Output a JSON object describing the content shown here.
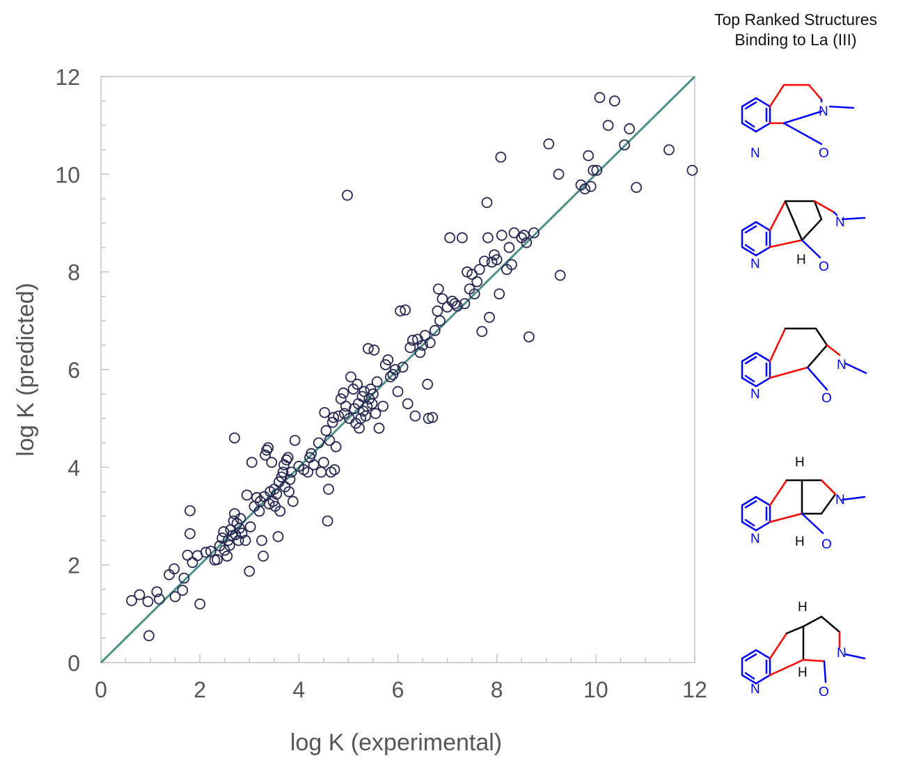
{
  "chart_data": {
    "type": "scatter",
    "xlabel": "log K (experimental)",
    "ylabel": "log K (predicted)",
    "xlim": [
      0,
      12
    ],
    "ylim": [
      0,
      12
    ],
    "x_ticks": [
      "0",
      "2",
      "4",
      "6",
      "8",
      "10",
      "12"
    ],
    "y_ticks": [
      "0",
      "2",
      "4",
      "6",
      "8",
      "10",
      "12"
    ],
    "grid": false,
    "fit_line": {
      "x": [
        0,
        12
      ],
      "y": [
        0,
        12
      ]
    },
    "points": [
      [
        0.62,
        1.27
      ],
      [
        0.78,
        1.39
      ],
      [
        0.95,
        1.25
      ],
      [
        0.97,
        0.55
      ],
      [
        1.13,
        1.45
      ],
      [
        1.18,
        1.3
      ],
      [
        1.38,
        1.8
      ],
      [
        1.48,
        1.92
      ],
      [
        1.5,
        1.35
      ],
      [
        1.65,
        1.48
      ],
      [
        1.68,
        1.73
      ],
      [
        1.75,
        2.2
      ],
      [
        1.8,
        2.64
      ],
      [
        1.8,
        3.11
      ],
      [
        1.85,
        2.05
      ],
      [
        1.95,
        2.19
      ],
      [
        2.0,
        1.2
      ],
      [
        2.12,
        2.26
      ],
      [
        2.22,
        2.28
      ],
      [
        2.3,
        2.1
      ],
      [
        2.35,
        2.11
      ],
      [
        2.4,
        2.39
      ],
      [
        2.45,
        2.55
      ],
      [
        2.48,
        2.68
      ],
      [
        2.5,
        2.3
      ],
      [
        2.55,
        2.18
      ],
      [
        2.57,
        2.5
      ],
      [
        2.6,
        2.4
      ],
      [
        2.62,
        2.72
      ],
      [
        2.65,
        2.6
      ],
      [
        2.68,
        2.9
      ],
      [
        2.7,
        3.05
      ],
      [
        2.72,
        2.62
      ],
      [
        2.75,
        2.85
      ],
      [
        2.78,
        2.5
      ],
      [
        2.8,
        2.75
      ],
      [
        2.82,
        2.95
      ],
      [
        2.85,
        2.65
      ],
      [
        2.7,
        4.6
      ],
      [
        2.92,
        2.5
      ],
      [
        2.95,
        3.43
      ],
      [
        3.0,
        1.87
      ],
      [
        3.02,
        2.78
      ],
      [
        3.05,
        4.1
      ],
      [
        3.1,
        3.2
      ],
      [
        3.15,
        3.38
      ],
      [
        3.2,
        3.1
      ],
      [
        3.22,
        3.3
      ],
      [
        3.25,
        2.5
      ],
      [
        3.28,
        2.18
      ],
      [
        3.3,
        3.4
      ],
      [
        3.32,
        4.25
      ],
      [
        3.35,
        4.35
      ],
      [
        3.38,
        4.4
      ],
      [
        3.4,
        3.25
      ],
      [
        3.42,
        3.5
      ],
      [
        3.45,
        4.1
      ],
      [
        3.48,
        3.3
      ],
      [
        3.5,
        3.55
      ],
      [
        3.52,
        3.2
      ],
      [
        3.55,
        3.45
      ],
      [
        3.58,
        2.58
      ],
      [
        3.6,
        3.7
      ],
      [
        3.62,
        3.1
      ],
      [
        3.65,
        3.8
      ],
      [
        3.68,
        3.9
      ],
      [
        3.7,
        4.05
      ],
      [
        3.72,
        3.6
      ],
      [
        3.75,
        4.15
      ],
      [
        3.78,
        4.2
      ],
      [
        3.8,
        3.5
      ],
      [
        3.82,
        3.75
      ],
      [
        3.85,
        3.9
      ],
      [
        3.88,
        3.3
      ],
      [
        3.92,
        4.55
      ],
      [
        4.0,
        4.02
      ],
      [
        4.1,
        3.95
      ],
      [
        4.18,
        3.9
      ],
      [
        4.22,
        4.2
      ],
      [
        4.25,
        4.28
      ],
      [
        4.3,
        4.05
      ],
      [
        4.4,
        4.5
      ],
      [
        4.45,
        3.9
      ],
      [
        4.5,
        4.1
      ],
      [
        4.52,
        5.12
      ],
      [
        4.55,
        4.75
      ],
      [
        4.58,
        2.9
      ],
      [
        4.6,
        3.55
      ],
      [
        4.62,
        4.55
      ],
      [
        4.65,
        3.9
      ],
      [
        4.68,
        4.92
      ],
      [
        4.7,
        5.02
      ],
      [
        4.72,
        3.95
      ],
      [
        4.75,
        4.42
      ],
      [
        4.8,
        5.05
      ],
      [
        4.85,
        5.4
      ],
      [
        4.9,
        5.52
      ],
      [
        4.92,
        5.1
      ],
      [
        4.95,
        5.25
      ],
      [
        4.98,
        9.57
      ],
      [
        5.02,
        5.0
      ],
      [
        5.05,
        5.85
      ],
      [
        5.1,
        5.6
      ],
      [
        5.12,
        5.2
      ],
      [
        5.15,
        4.9
      ],
      [
        5.18,
        5.7
      ],
      [
        5.2,
        5.3
      ],
      [
        5.22,
        4.8
      ],
      [
        5.25,
        5.0
      ],
      [
        5.28,
        5.45
      ],
      [
        5.3,
        5.15
      ],
      [
        5.32,
        5.55
      ],
      [
        5.35,
        5.05
      ],
      [
        5.38,
        5.25
      ],
      [
        5.4,
        6.43
      ],
      [
        5.42,
        5.4
      ],
      [
        5.45,
        5.6
      ],
      [
        5.48,
        5.3
      ],
      [
        5.5,
        5.5
      ],
      [
        5.52,
        6.4
      ],
      [
        5.55,
        5.1
      ],
      [
        5.58,
        5.75
      ],
      [
        5.62,
        4.8
      ],
      [
        5.7,
        5.25
      ],
      [
        5.75,
        6.1
      ],
      [
        5.8,
        6.2
      ],
      [
        5.85,
        5.85
      ],
      [
        5.9,
        5.9
      ],
      [
        5.95,
        6.0
      ],
      [
        6.0,
        5.55
      ],
      [
        6.05,
        7.2
      ],
      [
        6.1,
        6.05
      ],
      [
        6.15,
        7.22
      ],
      [
        6.2,
        5.3
      ],
      [
        6.25,
        6.45
      ],
      [
        6.3,
        6.6
      ],
      [
        6.35,
        5.05
      ],
      [
        6.4,
        6.62
      ],
      [
        6.45,
        6.35
      ],
      [
        6.5,
        6.5
      ],
      [
        6.55,
        6.7
      ],
      [
        6.6,
        5.7
      ],
      [
        6.62,
        5.0
      ],
      [
        6.65,
        6.55
      ],
      [
        6.7,
        5.02
      ],
      [
        6.75,
        6.8
      ],
      [
        6.8,
        7.2
      ],
      [
        6.82,
        7.65
      ],
      [
        6.85,
        7.0
      ],
      [
        6.9,
        7.45
      ],
      [
        7.0,
        7.28
      ],
      [
        7.05,
        8.7
      ],
      [
        7.1,
        7.4
      ],
      [
        7.15,
        7.35
      ],
      [
        7.2,
        7.3
      ],
      [
        7.3,
        8.7
      ],
      [
        7.35,
        7.35
      ],
      [
        7.4,
        8.0
      ],
      [
        7.45,
        7.65
      ],
      [
        7.5,
        7.95
      ],
      [
        7.55,
        7.55
      ],
      [
        7.6,
        7.8
      ],
      [
        7.65,
        8.05
      ],
      [
        7.7,
        6.78
      ],
      [
        7.75,
        8.22
      ],
      [
        7.8,
        9.42
      ],
      [
        7.82,
        8.7
      ],
      [
        7.85,
        7.07
      ],
      [
        7.9,
        8.2
      ],
      [
        7.95,
        8.35
      ],
      [
        8.0,
        8.25
      ],
      [
        8.05,
        7.55
      ],
      [
        8.08,
        10.35
      ],
      [
        8.1,
        8.75
      ],
      [
        8.2,
        8.05
      ],
      [
        8.25,
        8.5
      ],
      [
        8.3,
        8.15
      ],
      [
        8.35,
        8.8
      ],
      [
        8.5,
        8.7
      ],
      [
        8.55,
        8.75
      ],
      [
        8.6,
        8.6
      ],
      [
        8.65,
        6.67
      ],
      [
        8.75,
        8.8
      ],
      [
        9.05,
        10.62
      ],
      [
        9.25,
        10.0
      ],
      [
        9.28,
        7.93
      ],
      [
        9.7,
        9.78
      ],
      [
        9.78,
        9.7
      ],
      [
        9.85,
        10.38
      ],
      [
        9.9,
        9.75
      ],
      [
        9.95,
        10.08
      ],
      [
        10.02,
        10.08
      ],
      [
        10.08,
        11.57
      ],
      [
        10.25,
        11.0
      ],
      [
        10.38,
        11.5
      ],
      [
        10.58,
        10.6
      ],
      [
        10.68,
        10.93
      ],
      [
        10.82,
        9.73
      ],
      [
        11.48,
        10.5
      ],
      [
        11.95,
        10.08
      ]
    ]
  },
  "panel": {
    "title_line1": "Top Ranked Structures",
    "title_line2": "Binding to La (III)"
  },
  "atoms": {
    "n": "N",
    "o": "O",
    "h": "H"
  },
  "colors": {
    "marker": "#262650",
    "fit_line": "#4f8f86",
    "axis": "#c4c4c4",
    "tick_label": "#555555",
    "atom_blue": "#0000ff",
    "bond_red": "#ff0000",
    "bond_black": "#000000"
  }
}
